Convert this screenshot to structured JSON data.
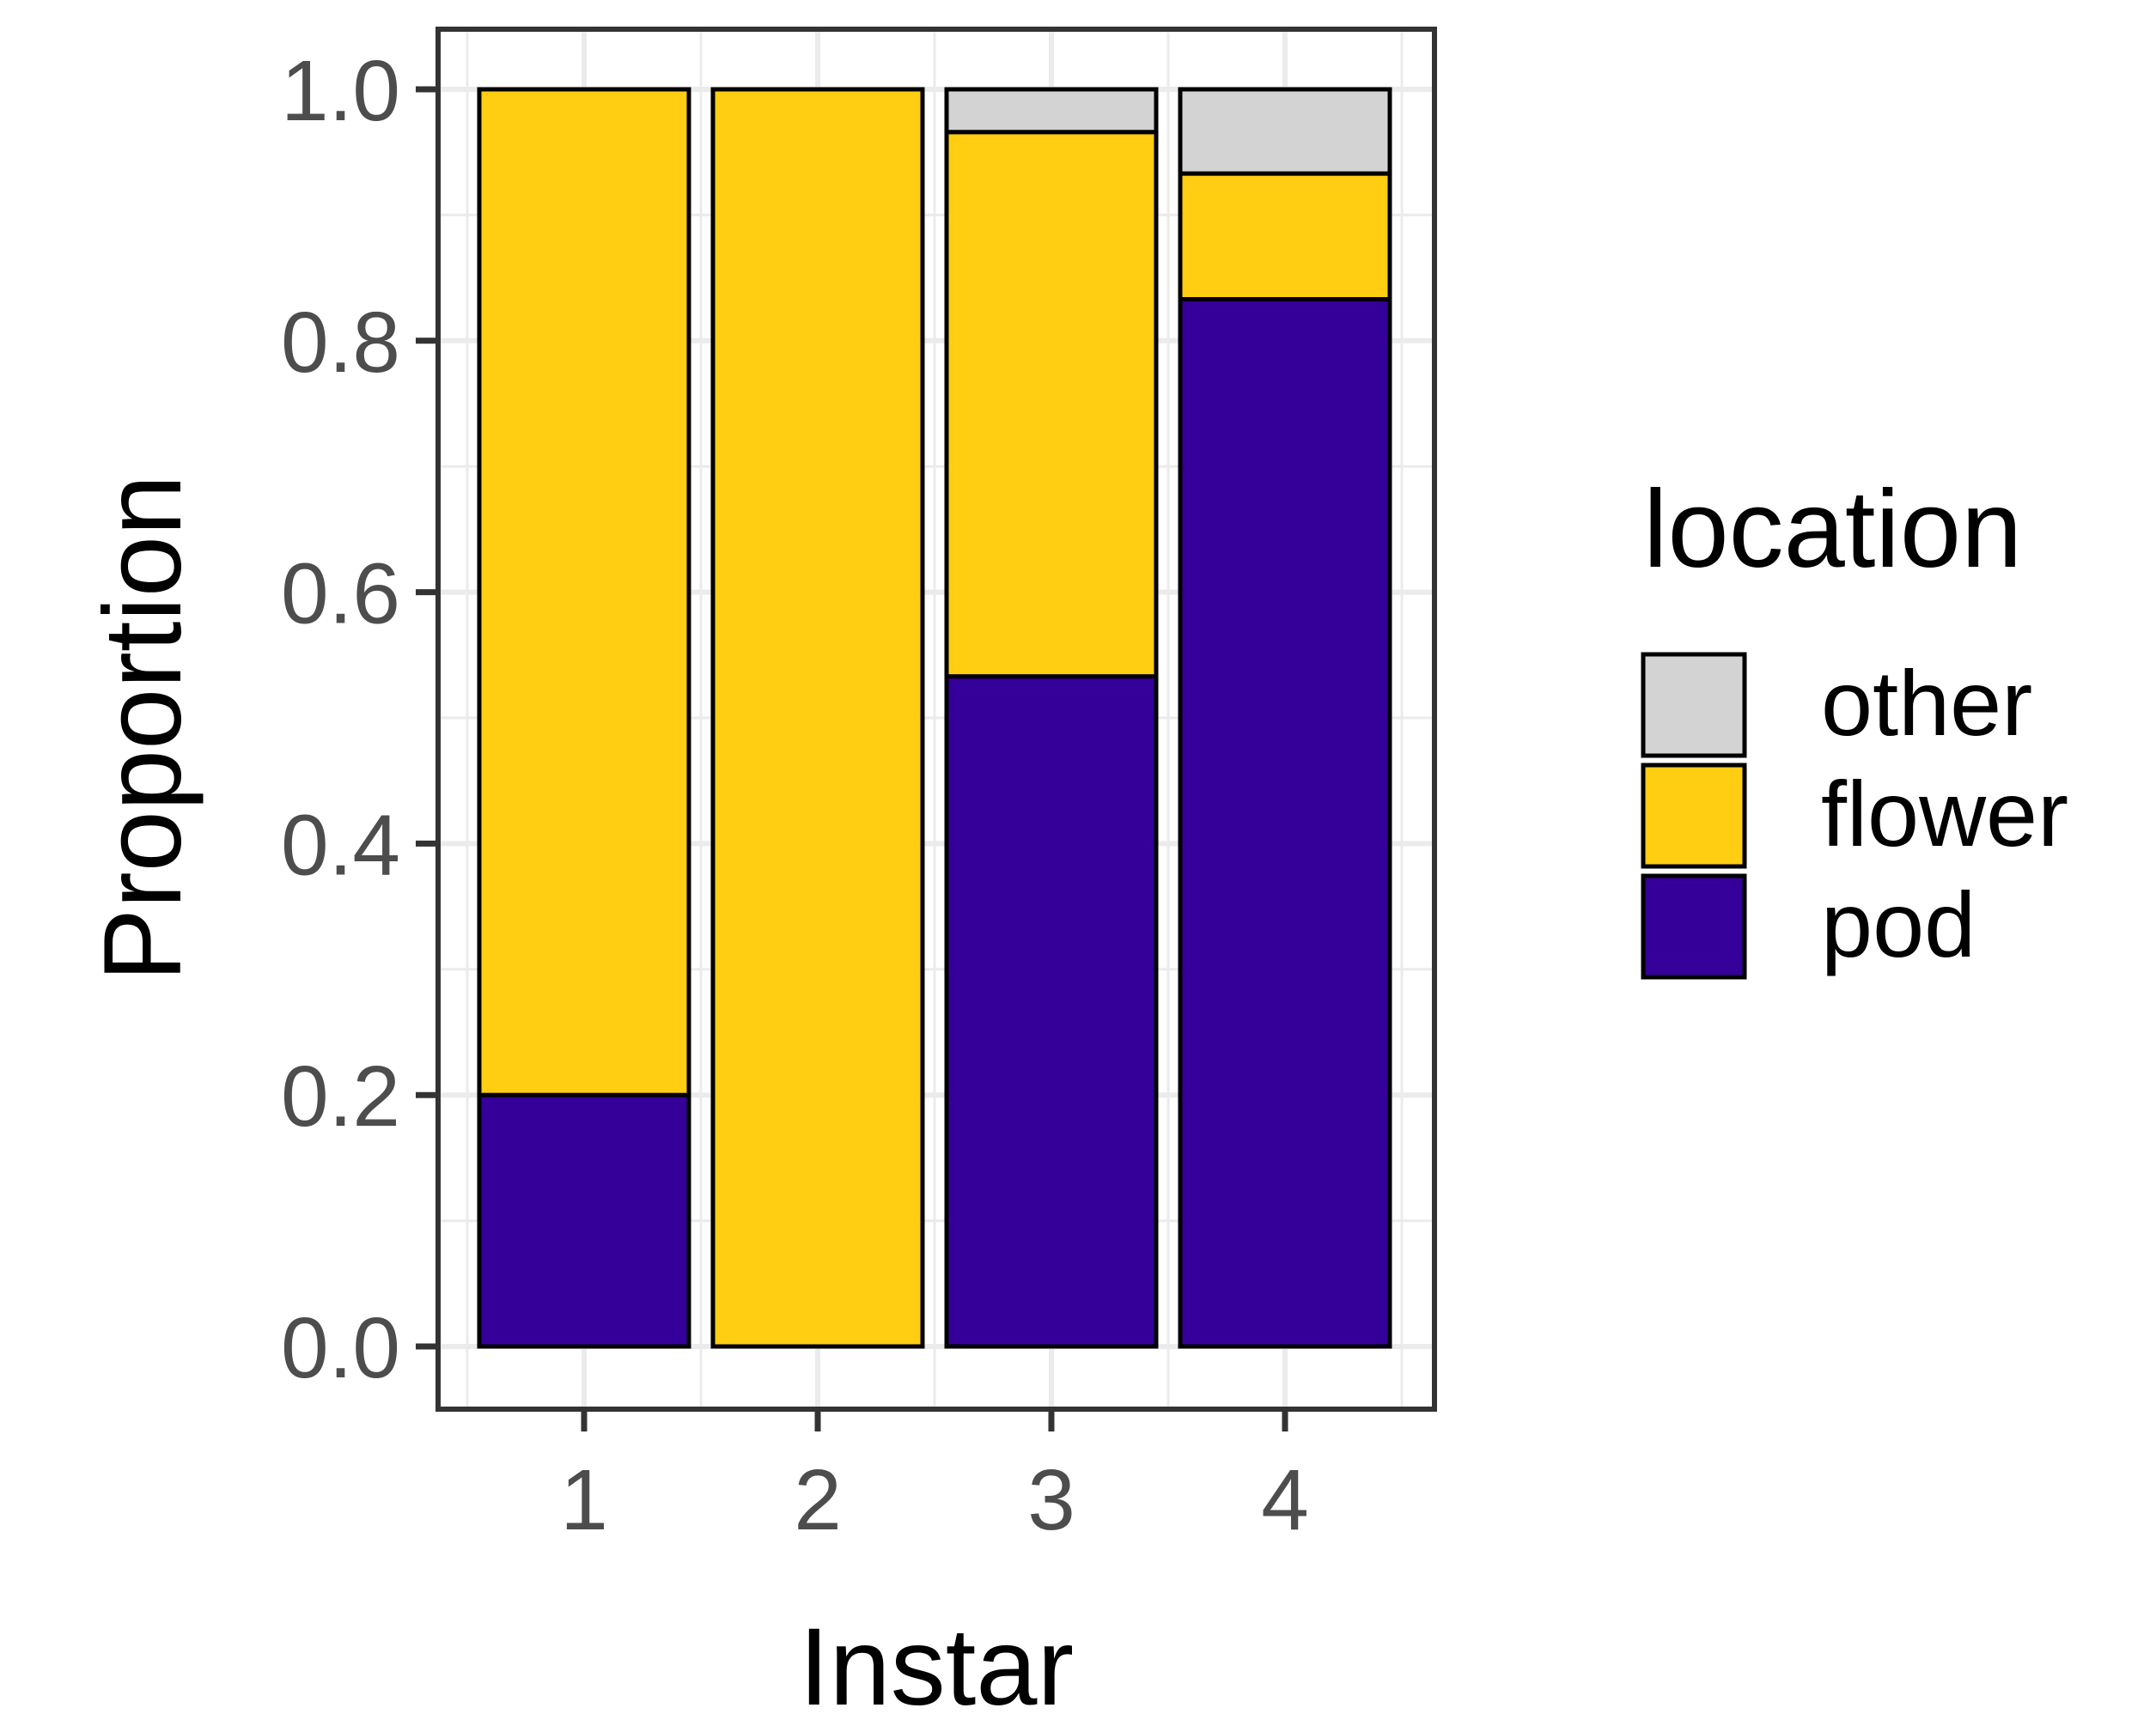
{
  "chart_data": {
    "type": "bar",
    "stacked": true,
    "categories": [
      "1",
      "2",
      "3",
      "4"
    ],
    "xlabel": "Instar",
    "ylabel": "Proportion",
    "ylim": [
      0,
      1
    ],
    "yticks": [
      "0.0",
      "0.2",
      "0.4",
      "0.6",
      "0.8",
      "1.0"
    ],
    "ytick_values": [
      0,
      0.2,
      0.4,
      0.6,
      0.8,
      1.0
    ],
    "grid": true,
    "legend": {
      "title": "location",
      "position": "right",
      "entries": [
        "other",
        "flower",
        "pod"
      ]
    },
    "series": [
      {
        "name": "pod",
        "color": "#35009a",
        "values": [
          0.2,
          0.0,
          0.533,
          0.833
        ]
      },
      {
        "name": "flower",
        "color": "#ffcd11",
        "values": [
          0.8,
          1.0,
          0.433,
          0.1
        ]
      },
      {
        "name": "other",
        "color": "#d3d3d3",
        "values": [
          0.0,
          0.0,
          0.034,
          0.067
        ]
      }
    ]
  }
}
